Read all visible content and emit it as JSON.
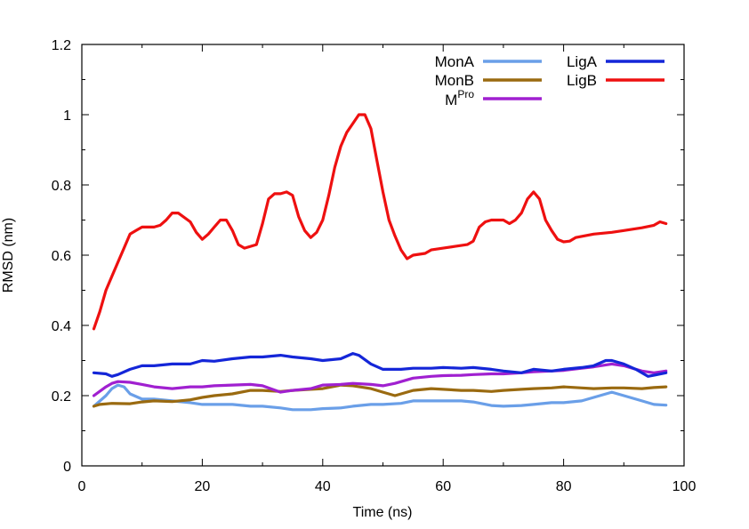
{
  "chart_data": {
    "type": "line",
    "xlabel": "Time (ns)",
    "ylabel": "RMSD (nm)",
    "xlim": [
      0,
      100
    ],
    "ylim": [
      0,
      1.2
    ],
    "x_ticks": [
      0,
      20,
      40,
      60,
      80,
      100
    ],
    "y_ticks": [
      0,
      0.2,
      0.4,
      0.6,
      0.8,
      1,
      1.2
    ],
    "y_tick_labels": [
      "0",
      "0.2",
      "0.4",
      "0.6",
      "0.8",
      "1",
      "1.2"
    ],
    "grid": false,
    "legend_placement": "top-right",
    "series": [
      {
        "name": "MonA",
        "color": "#6a9fe8",
        "x": [
          2,
          4,
          5,
          6,
          7,
          8,
          10,
          12,
          15,
          18,
          20,
          22,
          25,
          28,
          30,
          33,
          35,
          38,
          40,
          43,
          45,
          48,
          50,
          53,
          55,
          58,
          60,
          63,
          65,
          68,
          70,
          73,
          75,
          78,
          80,
          83,
          85,
          88,
          90,
          93,
          95,
          97
        ],
        "y": [
          0.17,
          0.2,
          0.22,
          0.23,
          0.225,
          0.205,
          0.19,
          0.19,
          0.185,
          0.18,
          0.175,
          0.175,
          0.175,
          0.17,
          0.17,
          0.165,
          0.16,
          0.16,
          0.163,
          0.165,
          0.17,
          0.175,
          0.175,
          0.178,
          0.185,
          0.185,
          0.185,
          0.185,
          0.182,
          0.172,
          0.17,
          0.172,
          0.175,
          0.18,
          0.18,
          0.185,
          0.195,
          0.21,
          0.2,
          0.185,
          0.175,
          0.173
        ]
      },
      {
        "name": "MonB",
        "color": "#9a6a10",
        "x": [
          2,
          3,
          5,
          8,
          10,
          12,
          15,
          18,
          20,
          22,
          25,
          28,
          30,
          33,
          35,
          38,
          40,
          43,
          45,
          48,
          50,
          52,
          55,
          58,
          60,
          63,
          65,
          68,
          70,
          73,
          75,
          78,
          80,
          83,
          85,
          88,
          90,
          93,
          95,
          97
        ],
        "y": [
          0.17,
          0.175,
          0.178,
          0.177,
          0.182,
          0.185,
          0.183,
          0.188,
          0.195,
          0.2,
          0.205,
          0.215,
          0.215,
          0.212,
          0.215,
          0.218,
          0.22,
          0.23,
          0.228,
          0.22,
          0.21,
          0.2,
          0.215,
          0.22,
          0.218,
          0.215,
          0.215,
          0.212,
          0.215,
          0.218,
          0.22,
          0.222,
          0.225,
          0.222,
          0.22,
          0.222,
          0.222,
          0.22,
          0.223,
          0.225
        ]
      },
      {
        "name": "MPro",
        "color": "#a020d0",
        "x": [
          2,
          4,
          5,
          6,
          8,
          10,
          12,
          15,
          18,
          20,
          22,
          25,
          28,
          30,
          33,
          35,
          38,
          40,
          43,
          45,
          48,
          50,
          52,
          55,
          58,
          60,
          63,
          65,
          68,
          70,
          73,
          75,
          78,
          80,
          83,
          85,
          88,
          90,
          93,
          95,
          97
        ],
        "y": [
          0.2,
          0.225,
          0.235,
          0.24,
          0.238,
          0.232,
          0.225,
          0.22,
          0.225,
          0.225,
          0.228,
          0.23,
          0.232,
          0.228,
          0.21,
          0.215,
          0.22,
          0.23,
          0.232,
          0.235,
          0.232,
          0.228,
          0.235,
          0.25,
          0.255,
          0.257,
          0.258,
          0.26,
          0.262,
          0.262,
          0.265,
          0.268,
          0.27,
          0.272,
          0.278,
          0.282,
          0.29,
          0.285,
          0.27,
          0.265,
          0.27
        ]
      },
      {
        "name": "LigA",
        "color": "#1426d8",
        "x": [
          2,
          4,
          5,
          6,
          8,
          10,
          12,
          15,
          18,
          20,
          22,
          25,
          28,
          30,
          33,
          35,
          38,
          40,
          43,
          45,
          46,
          48,
          50,
          53,
          55,
          58,
          60,
          63,
          65,
          68,
          70,
          73,
          75,
          78,
          80,
          83,
          85,
          87,
          88,
          90,
          92,
          94,
          95,
          97
        ],
        "y": [
          0.265,
          0.262,
          0.255,
          0.26,
          0.275,
          0.285,
          0.285,
          0.29,
          0.29,
          0.3,
          0.298,
          0.305,
          0.31,
          0.31,
          0.315,
          0.31,
          0.305,
          0.3,
          0.305,
          0.32,
          0.315,
          0.29,
          0.275,
          0.275,
          0.278,
          0.278,
          0.28,
          0.278,
          0.28,
          0.275,
          0.27,
          0.265,
          0.275,
          0.27,
          0.275,
          0.28,
          0.285,
          0.3,
          0.3,
          0.29,
          0.275,
          0.255,
          0.258,
          0.265
        ]
      },
      {
        "name": "LigB",
        "color": "#ee1010",
        "x": [
          2,
          3,
          4,
          5,
          6,
          7,
          8,
          9,
          10,
          12,
          13,
          14,
          15,
          16,
          18,
          19,
          20,
          21,
          22,
          23,
          24,
          25,
          26,
          27,
          28,
          29,
          30,
          31,
          32,
          33,
          34,
          35,
          36,
          37,
          38,
          39,
          40,
          41,
          42,
          43,
          44,
          45,
          46,
          47,
          48,
          49,
          50,
          51,
          52,
          53,
          54,
          55,
          57,
          58,
          60,
          62,
          64,
          65,
          66,
          67,
          68,
          70,
          71,
          72,
          73,
          74,
          75,
          76,
          77,
          78,
          79,
          80,
          81,
          82,
          85,
          88,
          90,
          93,
          95,
          96,
          97
        ],
        "y": [
          0.39,
          0.44,
          0.5,
          0.54,
          0.58,
          0.62,
          0.66,
          0.67,
          0.68,
          0.68,
          0.685,
          0.7,
          0.72,
          0.72,
          0.695,
          0.665,
          0.645,
          0.66,
          0.68,
          0.7,
          0.7,
          0.67,
          0.63,
          0.62,
          0.625,
          0.63,
          0.69,
          0.76,
          0.775,
          0.775,
          0.78,
          0.77,
          0.71,
          0.67,
          0.65,
          0.665,
          0.7,
          0.77,
          0.85,
          0.91,
          0.95,
          0.975,
          1.0,
          1.0,
          0.96,
          0.87,
          0.78,
          0.7,
          0.655,
          0.615,
          0.59,
          0.6,
          0.605,
          0.615,
          0.62,
          0.625,
          0.63,
          0.64,
          0.68,
          0.695,
          0.7,
          0.7,
          0.69,
          0.7,
          0.72,
          0.76,
          0.78,
          0.76,
          0.7,
          0.67,
          0.645,
          0.638,
          0.64,
          0.65,
          0.66,
          0.665,
          0.67,
          0.678,
          0.685,
          0.695,
          0.69
        ]
      }
    ]
  }
}
